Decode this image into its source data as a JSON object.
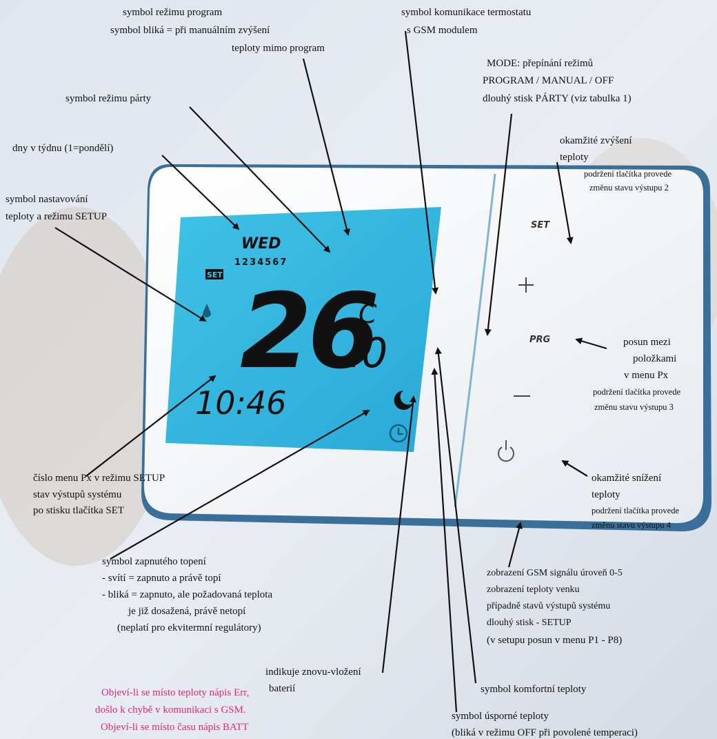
{
  "annotations": [
    {
      "lines": [
        "symbol režimu program",
        "symbol bliká = při manuálním zvýšení",
        "teploty mimo program"
      ]
    },
    {
      "lines": [
        "symbol režimu párty"
      ]
    },
    {
      "lines": [
        "dny v týdnu (1=pondělí)"
      ]
    },
    {
      "lines": [
        "symbol nastavování",
        "teploty a režimu SETUP"
      ]
    },
    {
      "lines": [
        "symbol komunikace termostatu",
        "s GSM modulem"
      ]
    },
    {
      "lines": [
        "MODE: přepínání režimů",
        "PROGRAM / MANUAL / OFF",
        "dlouhý stisk PÁRTY (viz tabulka 1)"
      ]
    },
    {
      "lines": [
        "okamžité zvýšení",
        "teploty"
      ],
      "detail": [
        "podržení tlačítka provede",
        "změnu stavu výstupu 2"
      ]
    },
    {
      "lines": [
        "posun mezi",
        "položkami",
        "v menu Px"
      ],
      "detail": [
        "podržení tlačítka provede",
        "změnu stavu výstupu 3"
      ]
    },
    {
      "lines": [
        "okamžité snížení",
        "teploty"
      ],
      "detail": [
        "podržení tlačítka provede",
        "změnu stavu výstupu 4"
      ]
    },
    {
      "lines": [
        "číslo menu Px v režimu SETUP",
        "stav výstupů systému",
        "po stisku tlačítka SET"
      ]
    },
    {
      "lines": [
        "symbol zapnutého topení",
        "- svítí = zapnuto a právě topí",
        "- bliká = zapnuto, ale požadovaná teplota",
        "je již dosažená, právě netopí",
        "(neplatí pro ekvitermní regulátory)"
      ]
    },
    {
      "lines": [
        "zobrazení GSM signálu úroveň 0-5",
        "zobrazení teploty venku",
        "případně stavů výstupů systému",
        "dlouhý stisk - SETUP",
        "(v setupu posun v menu P1 - P8)"
      ]
    },
    {
      "lines": [
        "indikuje znovu-vložení",
        "baterií"
      ]
    },
    {
      "lines": [
        "symbol komfortní teploty"
      ]
    },
    {
      "lines": [
        "symbol úsporné teploty",
        "(bliká v režimu OFF při povolené temperaci)"
      ]
    }
  ],
  "note": [
    "Objeví-li se místo teploty nápis Err,",
    "došlo k chybě v komunikaci s GSM.",
    "Objeví-li se místo času nápis BATT"
  ],
  "display": {
    "day": "WED",
    "day_numbers": "1234567",
    "set": "SET",
    "temperature": "26",
    "decimal": ".0",
    "unit": "C",
    "time": "10:46"
  },
  "buttons": {
    "set": "SET",
    "prg": "PRG"
  }
}
